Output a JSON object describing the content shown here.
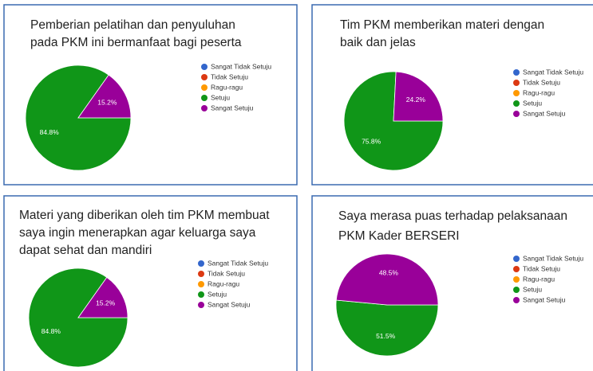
{
  "chart_data": [
    {
      "type": "pie",
      "title": [
        "Pemberian pelatihan dan penyuluhan",
        "pada PKM ini bermanfaat bagi peserta"
      ],
      "categories": [
        "Sangat Tidak Setuju",
        "Tidak Setuju",
        "Ragu-ragu",
        "Setuju",
        "Sangat Setuju"
      ],
      "values": [
        0,
        0,
        0,
        84.8,
        15.2
      ],
      "value_labels": [
        null,
        null,
        null,
        "84.8%",
        "15.2%"
      ],
      "colors": [
        "#3366cc",
        "#dc3912",
        "#ff9900",
        "#109618",
        "#990099"
      ]
    },
    {
      "type": "pie",
      "title": [
        "Tim PKM memberikan materi dengan",
        "baik dan jelas"
      ],
      "categories": [
        "Sangat Tidak Setuju",
        "Tidak Setuju",
        "Ragu-ragu",
        "Setuju",
        "Sangat Setuju"
      ],
      "values": [
        0,
        0,
        0,
        75.8,
        24.2
      ],
      "value_labels": [
        null,
        null,
        null,
        "75.8%",
        "24.2%"
      ],
      "colors": [
        "#3366cc",
        "#dc3912",
        "#ff9900",
        "#109618",
        "#990099"
      ]
    },
    {
      "type": "pie",
      "title": [
        "Materi yang diberikan oleh tim PKM membuat",
        "saya ingin menerapkan agar keluarga saya",
        "dapat sehat dan mandiri"
      ],
      "categories": [
        "Sangat Tidak Setuju",
        "Tidak Setuju",
        "Ragu-ragu",
        "Setuju",
        "Sangat Setuju"
      ],
      "values": [
        0,
        0,
        0,
        84.8,
        15.2
      ],
      "value_labels": [
        null,
        null,
        null,
        "84.8%",
        "15.2%"
      ],
      "colors": [
        "#3366cc",
        "#dc3912",
        "#ff9900",
        "#109618",
        "#990099"
      ]
    },
    {
      "type": "pie",
      "title": [
        "Saya merasa puas terhadap pelaksanaan",
        "PKM Kader BERSERI"
      ],
      "categories": [
        "Sangat Tidak Setuju",
        "Tidak Setuju",
        "Ragu-ragu",
        "Setuju",
        "Sangat Setuju"
      ],
      "values": [
        0,
        0,
        0,
        51.5,
        48.5
      ],
      "value_labels": [
        null,
        null,
        null,
        "51.5%",
        "48.5%"
      ],
      "colors": [
        "#3366cc",
        "#dc3912",
        "#ff9900",
        "#109618",
        "#990099"
      ]
    }
  ]
}
